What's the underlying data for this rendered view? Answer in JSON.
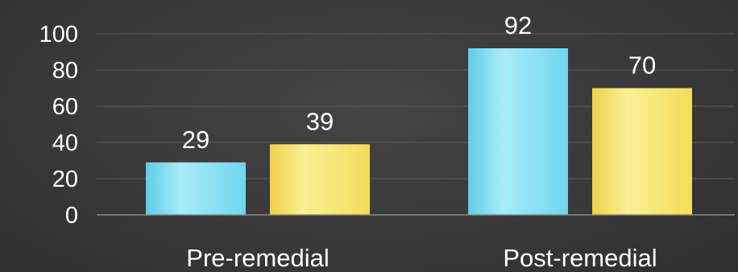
{
  "chart_data": {
    "type": "bar",
    "categories": [
      "Pre-remedial",
      "Post-remedial"
    ],
    "series": [
      {
        "values": [
          29,
          92
        ],
        "color": "#7fdff2"
      },
      {
        "values": [
          39,
          70
        ],
        "color": "#f7e36a"
      }
    ],
    "yticks": [
      "0",
      "20",
      "40",
      "60",
      "80",
      "100"
    ],
    "ylim": [
      0,
      100
    ],
    "grid": true,
    "legend": "none",
    "data_labels": true
  }
}
